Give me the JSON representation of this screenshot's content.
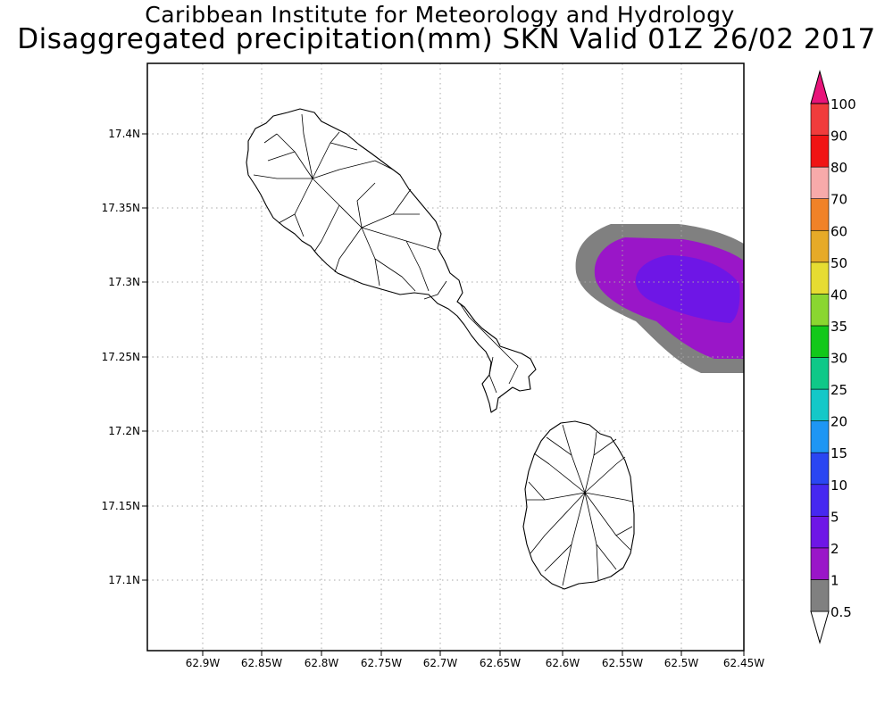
{
  "header": {
    "line1": "Caribbean Institute for Meteorology and Hydrology",
    "line2": "Disaggregated precipitation(mm) SKN Valid 01Z 26/02 2017"
  },
  "map": {
    "lon_ticks": [
      "62.9W",
      "62.85W",
      "62.8W",
      "62.75W",
      "62.7W",
      "62.65W",
      "62.6W",
      "62.55W",
      "62.5W",
      "62.45W"
    ],
    "lat_ticks": [
      "17.4N",
      "17.35N",
      "17.3N",
      "17.25N",
      "17.2N",
      "17.15N",
      "17.1N"
    ],
    "features": [
      "St. Kitts watershed outline",
      "Nevis watershed outline",
      "precipitation cell east of St. Kitts"
    ]
  },
  "colorbar": {
    "labels": [
      "0.5",
      "1",
      "2",
      "5",
      "10",
      "15",
      "20",
      "25",
      "30",
      "35",
      "40",
      "50",
      "60",
      "70",
      "80",
      "90",
      "100"
    ],
    "colors": [
      "#808080",
      "#9a16c8",
      "#6e16e6",
      "#4628f0",
      "#2a46f2",
      "#1e96f4",
      "#14c8c8",
      "#0fc888",
      "#12c81a",
      "#8ad630",
      "#e6dc32",
      "#e6aa28",
      "#f08228",
      "#f7aaaa",
      "#f01414",
      "#f03c3c",
      "#e8147a"
    ]
  }
}
